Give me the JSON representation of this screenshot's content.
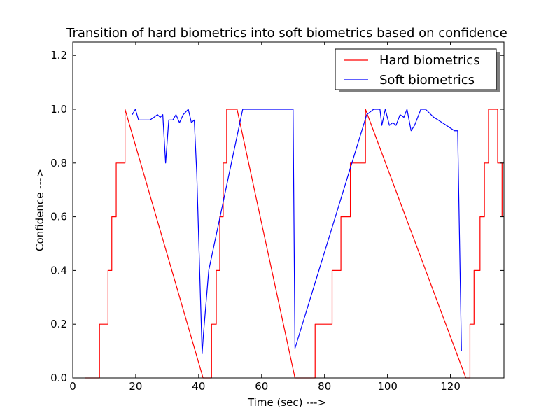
{
  "chart_data": {
    "type": "line",
    "title": "Transition of hard biometrics into soft biometrics based on confidence",
    "xlabel": "Time (sec) --->",
    "ylabel": "Confidence --->",
    "xlim": [
      0,
      137
    ],
    "ylim": [
      0.0,
      1.25
    ],
    "xticks": [
      0,
      20,
      40,
      60,
      80,
      100,
      120
    ],
    "yticks": [
      0.0,
      0.2,
      0.4,
      0.6,
      0.8,
      1.0,
      1.2
    ],
    "xtick_labels": [
      "0",
      "20",
      "40",
      "60",
      "80",
      "100",
      "120"
    ],
    "ytick_labels": [
      "0.0",
      "0.2",
      "0.4",
      "0.6",
      "0.8",
      "1.0",
      "1.2"
    ],
    "grid": false,
    "legend": {
      "position": "top-right",
      "entries": [
        "Hard biometrics",
        "Soft biometrics"
      ]
    },
    "series": [
      {
        "name": "Hard biometrics",
        "color": "#ff0000",
        "x": [
          4,
          8.5,
          8.5,
          11.2,
          11.2,
          12.4,
          12.4,
          13.8,
          13.8,
          16.6,
          16.6,
          41.4,
          44.1,
          44.1,
          45.6,
          45.6,
          46.7,
          46.7,
          47.8,
          47.8,
          48.9,
          48.9,
          52.2,
          70.6,
          77,
          77,
          82.4,
          82.4,
          85.2,
          85.2,
          88.2,
          88.2,
          93,
          93,
          124.9,
          126.2,
          126.2,
          127.5,
          127.5,
          129.4,
          129.4,
          130.8,
          130.8,
          132.1,
          132.1,
          135,
          135,
          136.4,
          136.4
        ],
        "y": [
          0.0,
          0.0,
          0.2,
          0.2,
          0.4,
          0.4,
          0.6,
          0.6,
          0.8,
          0.8,
          1.0,
          0.0,
          0.0,
          0.2,
          0.2,
          0.4,
          0.4,
          0.6,
          0.6,
          0.8,
          0.8,
          1.0,
          1.0,
          0.0,
          0.0,
          0.2,
          0.2,
          0.4,
          0.4,
          0.6,
          0.6,
          0.8,
          0.8,
          1.0,
          0.0,
          0.0,
          0.2,
          0.2,
          0.4,
          0.4,
          0.6,
          0.6,
          0.8,
          0.8,
          1.0,
          1.0,
          0.8,
          0.8,
          0.6
        ]
      },
      {
        "name": "Soft biometrics",
        "color": "#0000ff",
        "x": [
          18.9,
          19.9,
          20.9,
          22.7,
          24.5,
          25.8,
          26.9,
          27.8,
          28.6,
          29.5,
          30.5,
          31.8,
          32.8,
          33.9,
          35.1,
          36.7,
          37.7,
          38.6,
          39.4,
          41.1,
          41.5,
          43.2,
          54,
          70,
          70.6,
          93.4,
          95.6,
          97.6,
          98.2,
          99.3,
          100.6,
          101.7,
          102.7,
          104,
          105.2,
          106.2,
          107.5,
          108.6,
          110.6,
          112.1,
          114.7,
          116.1,
          121.3,
          122.3,
          123.5
        ],
        "y": [
          0.98,
          1.0,
          0.96,
          0.96,
          0.96,
          0.97,
          0.98,
          0.97,
          0.98,
          0.8,
          0.96,
          0.96,
          0.98,
          0.95,
          0.98,
          1.0,
          0.95,
          0.96,
          0.76,
          0.09,
          0.16,
          0.4,
          1.0,
          1.0,
          0.11,
          0.98,
          1.0,
          1.0,
          0.94,
          1.0,
          0.94,
          0.95,
          0.94,
          0.98,
          0.97,
          1.0,
          0.92,
          0.94,
          1.0,
          1.0,
          0.97,
          0.96,
          0.92,
          0.92,
          0.1
        ]
      }
    ]
  }
}
